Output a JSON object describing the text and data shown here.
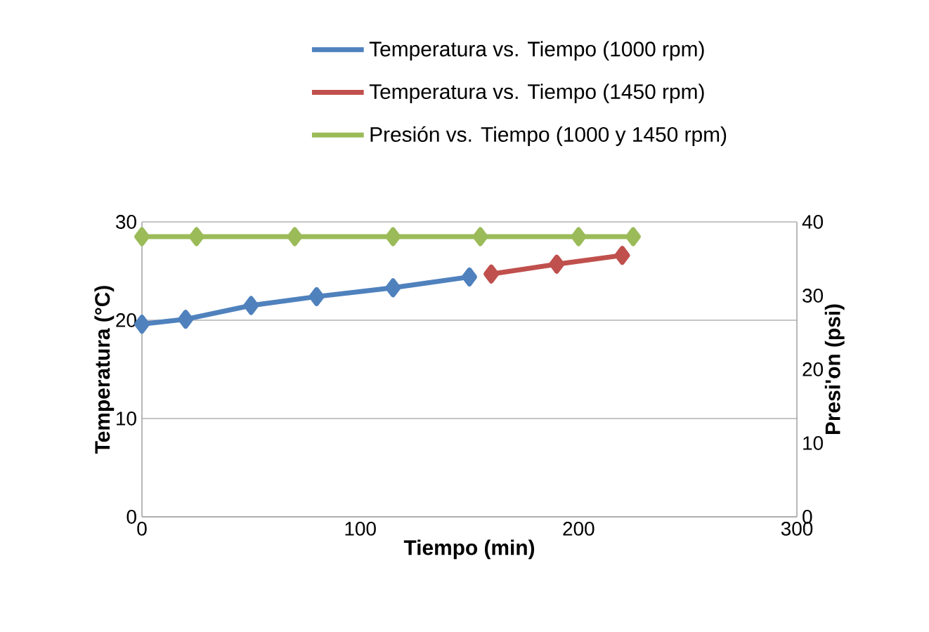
{
  "chart_data": {
    "type": "line",
    "xlabel": "Tiempo (min)",
    "ylabel": "Temperatura (°C)",
    "y2label": "Presi'on (psi)",
    "xlim": [
      0,
      300
    ],
    "xticks": [
      0,
      100,
      200,
      300
    ],
    "ylim": [
      0,
      30
    ],
    "yticks": [
      0,
      10,
      20,
      30
    ],
    "y2lim": [
      0,
      40
    ],
    "y2ticks": [
      0,
      10,
      20,
      30,
      40
    ],
    "grid": "y",
    "legend": "top",
    "marker": "diamond",
    "line_style": "solid",
    "series": [
      {
        "name": "Temperatura vs. Tiempo (1000 rpm)",
        "color": "#4f81bd",
        "x": [
          0,
          20,
          50,
          80,
          115,
          150
        ],
        "values": [
          19.6,
          20.1,
          21.5,
          22.4,
          23.3,
          24.4
        ]
      },
      {
        "name": "Temperatura vs. Tiempo (1450 rpm)",
        "color": "#c0504d",
        "x": [
          160,
          190,
          220
        ],
        "values": [
          24.7,
          25.7,
          26.6
        ]
      },
      {
        "name": "Presión vs. Tiempo (1000 y 1450 rpm)",
        "color": "#9bbb59",
        "axis": "y2",
        "x": [
          0,
          25,
          70,
          115,
          155,
          200,
          225
        ],
        "values": [
          38,
          38,
          38,
          38,
          38,
          38,
          38
        ]
      }
    ]
  }
}
